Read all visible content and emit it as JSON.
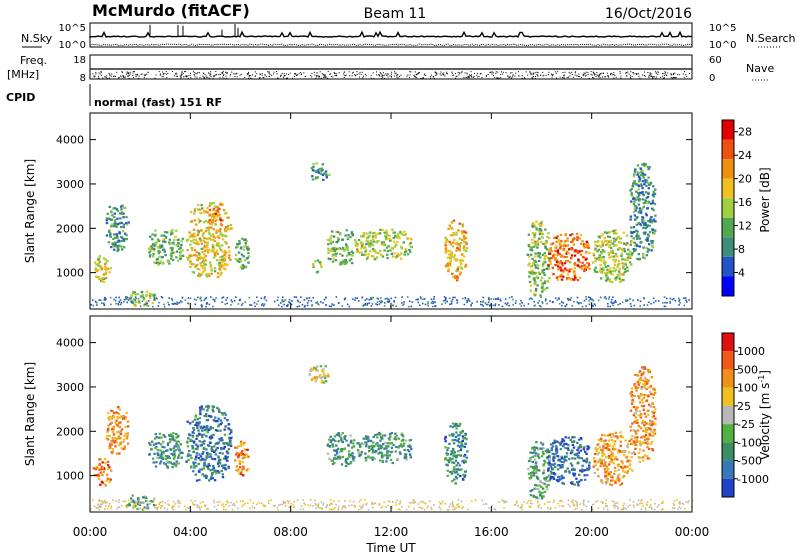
{
  "header": {
    "station": "McMurdo (fitACF)",
    "beam": "Beam 11",
    "date": "16/Oct/2016"
  },
  "status_panels": {
    "nsky_label": "N.Sky",
    "nsearch_label": "N.Search",
    "freq_label_1": "Freq.",
    "freq_label_2": "[MHz]",
    "nave_label": "Nave",
    "cpid_label": "CPID",
    "cpid_text": "normal (fast) 151 RF",
    "noise_left_ticks": [
      "10^5",
      "10^0"
    ],
    "noise_right_ticks": [
      "10^5",
      "10^0"
    ],
    "freq_left_ticks": [
      "18",
      "8"
    ],
    "freq_right_ticks": [
      "60",
      "0"
    ]
  },
  "chart_data": [
    {
      "type": "heatmap",
      "quantity": "power",
      "xlabel": "",
      "ylabel": "Slant Range [km]",
      "x_ticks": [
        "00:00",
        "04:00",
        "08:00",
        "12:00",
        "16:00",
        "20:00",
        "00:00"
      ],
      "x_range_hours": [
        0,
        24
      ],
      "y_ticks": [
        1000,
        2000,
        3000,
        4000
      ],
      "ylim": [
        180,
        4600
      ],
      "colorbar": {
        "label": "Power [dB]",
        "ticks": [
          4,
          8,
          12,
          16,
          20,
          24,
          28
        ],
        "range": [
          0,
          30
        ],
        "colors": [
          "#0000ff",
          "#2255c8",
          "#3f8c78",
          "#50a850",
          "#a0d040",
          "#f0c020",
          "#f09010",
          "#f05010",
          "#e00000"
        ]
      },
      "echo_regions": [
        {
          "t0": 0.1,
          "t1": 0.8,
          "r0": 800,
          "r1": 1400,
          "level": 0.55
        },
        {
          "t0": 0.6,
          "t1": 1.5,
          "r0": 1500,
          "r1": 2600,
          "level": 0.3
        },
        {
          "t0": 1.4,
          "t1": 2.6,
          "r0": 250,
          "r1": 600,
          "level": 0.45
        },
        {
          "t0": 2.3,
          "t1": 3.7,
          "r0": 1200,
          "r1": 2000,
          "level": 0.4
        },
        {
          "t0": 3.8,
          "t1": 5.6,
          "r0": 900,
          "r1": 2600,
          "level": 0.6
        },
        {
          "t0": 4.7,
          "t1": 5.2,
          "r0": 2100,
          "r1": 2500,
          "level": 0.75
        },
        {
          "t0": 5.7,
          "t1": 6.3,
          "r0": 1100,
          "r1": 1800,
          "level": 0.4
        },
        {
          "t0": 8.8,
          "t1": 9.2,
          "r0": 1000,
          "r1": 1300,
          "level": 0.5
        },
        {
          "t0": 8.7,
          "t1": 9.5,
          "r0": 3100,
          "r1": 3500,
          "level": 0.3
        },
        {
          "t0": 9.4,
          "t1": 10.6,
          "r0": 1200,
          "r1": 2000,
          "level": 0.4
        },
        {
          "t0": 10.6,
          "t1": 12.8,
          "r0": 1300,
          "r1": 2000,
          "level": 0.5
        },
        {
          "t0": 14.1,
          "t1": 15.0,
          "r0": 850,
          "r1": 2200,
          "level": 0.65
        },
        {
          "t0": 17.4,
          "t1": 18.3,
          "r0": 500,
          "r1": 2200,
          "level": 0.45
        },
        {
          "t0": 18.2,
          "t1": 19.9,
          "r0": 800,
          "r1": 1900,
          "level": 0.8
        },
        {
          "t0": 20.0,
          "t1": 21.6,
          "r0": 800,
          "r1": 2000,
          "level": 0.5
        },
        {
          "t0": 21.5,
          "t1": 22.5,
          "r0": 1300,
          "r1": 3500,
          "level": 0.3
        }
      ]
    },
    {
      "type": "heatmap",
      "quantity": "velocity",
      "xlabel": "Time UT",
      "ylabel": "Slant Range [km]",
      "x_ticks": [
        "00:00",
        "04:00",
        "08:00",
        "12:00",
        "16:00",
        "20:00",
        "00:00"
      ],
      "x_range_hours": [
        0,
        24
      ],
      "y_ticks": [
        1000,
        2000,
        3000,
        4000
      ],
      "ylim": [
        180,
        4600
      ],
      "colorbar": {
        "label": "Velocity [m s",
        "label_superscript": "-1",
        "label_end": "]",
        "ticks": [
          "1000",
          "500",
          "100",
          "25",
          "-25",
          "-100",
          "-500",
          "-1000"
        ],
        "colors": [
          "#2040c8",
          "#3878b8",
          "#3c8c64",
          "#50b040",
          "#b8b8b8",
          "#f0c020",
          "#f09018",
          "#f05818",
          "#e01010"
        ]
      },
      "echo_regions": [
        {
          "t0": 0.1,
          "t1": 0.8,
          "r0": 800,
          "r1": 1400,
          "level": 0.75
        },
        {
          "t0": 0.6,
          "t1": 1.5,
          "r0": 1500,
          "r1": 2600,
          "level": 0.7
        },
        {
          "t0": 1.4,
          "t1": 2.6,
          "r0": 250,
          "r1": 600,
          "level": 0.3
        },
        {
          "t0": 2.3,
          "t1": 3.7,
          "r0": 1200,
          "r1": 2000,
          "level": 0.3
        },
        {
          "t0": 3.8,
          "t1": 5.6,
          "r0": 900,
          "r1": 2600,
          "level": 0.2
        },
        {
          "t0": 5.7,
          "t1": 6.3,
          "r0": 1000,
          "r1": 1800,
          "level": 0.75
        },
        {
          "t0": 8.7,
          "t1": 9.5,
          "r0": 3100,
          "r1": 3500,
          "level": 0.55
        },
        {
          "t0": 9.4,
          "t1": 10.6,
          "r0": 1200,
          "r1": 2000,
          "level": 0.3
        },
        {
          "t0": 10.6,
          "t1": 12.8,
          "r0": 1300,
          "r1": 2000,
          "level": 0.3
        },
        {
          "t0": 14.1,
          "t1": 15.0,
          "r0": 850,
          "r1": 2200,
          "level": 0.25
        },
        {
          "t0": 17.4,
          "t1": 18.3,
          "r0": 500,
          "r1": 1800,
          "level": 0.35
        },
        {
          "t0": 18.2,
          "t1": 19.9,
          "r0": 800,
          "r1": 1900,
          "level": 0.15
        },
        {
          "t0": 20.0,
          "t1": 21.6,
          "r0": 800,
          "r1": 2000,
          "level": 0.7
        },
        {
          "t0": 21.5,
          "t1": 22.5,
          "r0": 1300,
          "r1": 3500,
          "level": 0.7
        }
      ]
    }
  ]
}
